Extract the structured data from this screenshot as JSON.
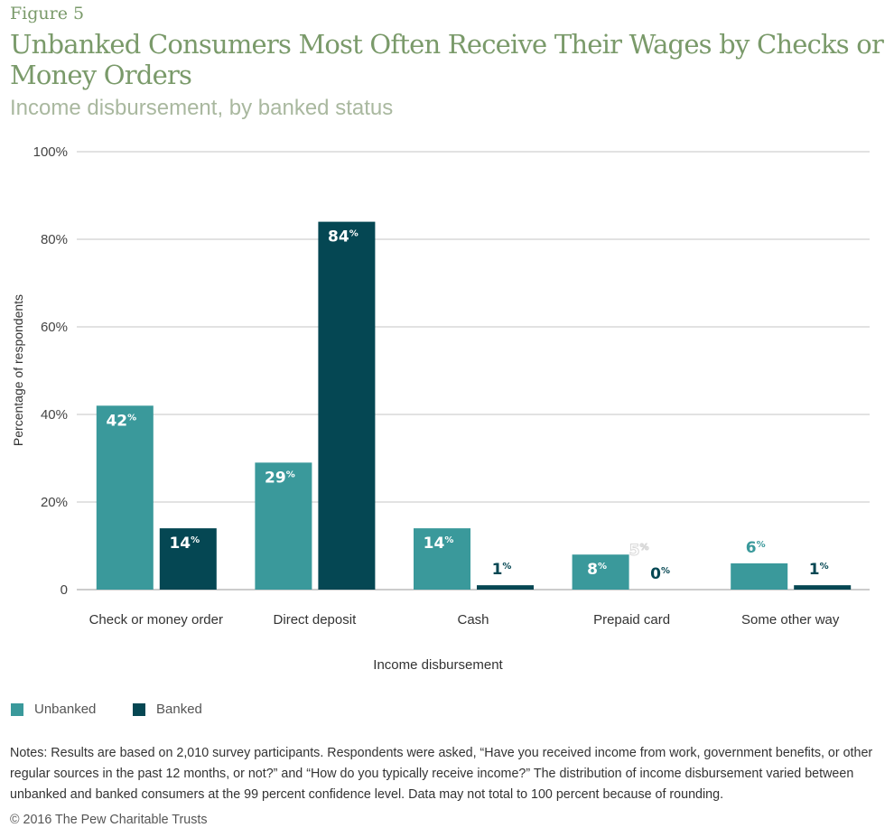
{
  "figure_label": "Figure 5",
  "title": "Unbanked Consumers Most Often Receive Their Wages by Checks or Money Orders",
  "subtitle": "Income disbursement, by banked status",
  "chart_data": {
    "type": "bar",
    "categories": [
      "Check or money order",
      "Direct deposit",
      "Cash",
      "Prepaid card",
      "Some other way"
    ],
    "series": [
      {
        "name": "Unbanked",
        "color": "#3a999b",
        "values": [
          42,
          29,
          14,
          8,
          6
        ],
        "labels": [
          "42%",
          "29%",
          "14%",
          "8%",
          "6%"
        ]
      },
      {
        "name": "Banked",
        "color": "#054753",
        "values": [
          14,
          84,
          1,
          0,
          1
        ],
        "labels": [
          "14%",
          "84%",
          "1%",
          "0%",
          "1%"
        ]
      }
    ],
    "stray_label": "5%",
    "xlabel": "Income disbursement",
    "ylabel": "Percentage of respondents",
    "ylim": [
      0,
      100
    ],
    "yticks": [
      "0",
      "20%",
      "40%",
      "60%",
      "80%",
      "100%"
    ],
    "grid": true,
    "legend": "bottom-left"
  },
  "notes": "Notes: Results are based on 2,010 survey participants. Respondents were asked, “Have you received income from work, government benefits, or other regular sources in the past 12 months, or not?” and “How do you typically receive income?” The distribution of income disbursement varied between unbanked and banked consumers at the 99 percent confidence level. Data may not total to 100 percent because of rounding.",
  "copyright": "© 2016 The Pew Charitable Trusts"
}
